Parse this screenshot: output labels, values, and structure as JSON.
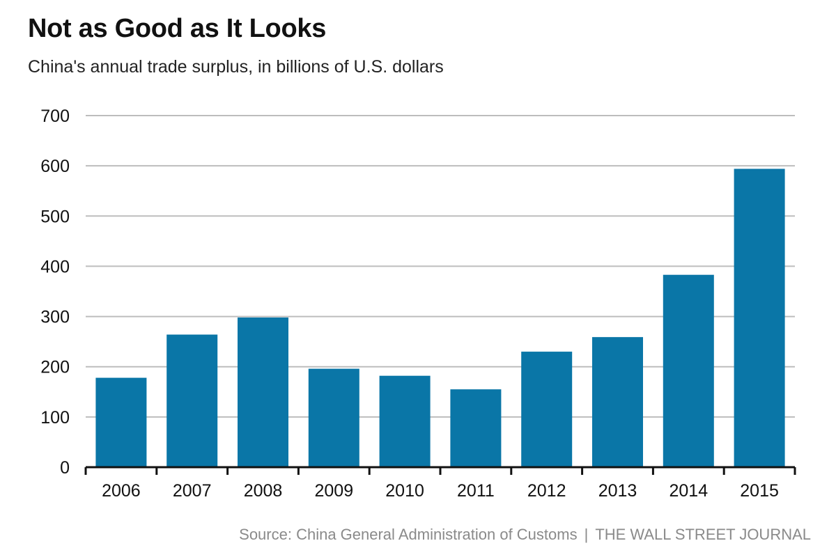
{
  "title": "Not as Good as It Looks",
  "subtitle": "China's annual trade surplus, in billions of U.S. dollars",
  "source_label": "Source: China General Administration of Customs",
  "source_separator": "|",
  "publisher": "THE WALL STREET JOURNAL",
  "colors": {
    "bar": "#0a76a7",
    "grid": "#bdbdbd",
    "axis": "#111111",
    "source_text": "#8a8a8a"
  },
  "chart_data": {
    "type": "bar",
    "title": "Not as Good as It Looks",
    "subtitle": "China's annual trade surplus, in billions of U.S. dollars",
    "xlabel": "",
    "ylabel": "",
    "categories": [
      "2006",
      "2007",
      "2008",
      "2009",
      "2010",
      "2011",
      "2012",
      "2013",
      "2014",
      "2015"
    ],
    "values": [
      178,
      264,
      298,
      196,
      182,
      155,
      230,
      259,
      383,
      594
    ],
    "ylim": [
      0,
      700
    ],
    "yticks": [
      "0",
      "100",
      "200",
      "300",
      "400",
      "500",
      "600",
      "700"
    ],
    "grid": true,
    "legend": "none"
  }
}
